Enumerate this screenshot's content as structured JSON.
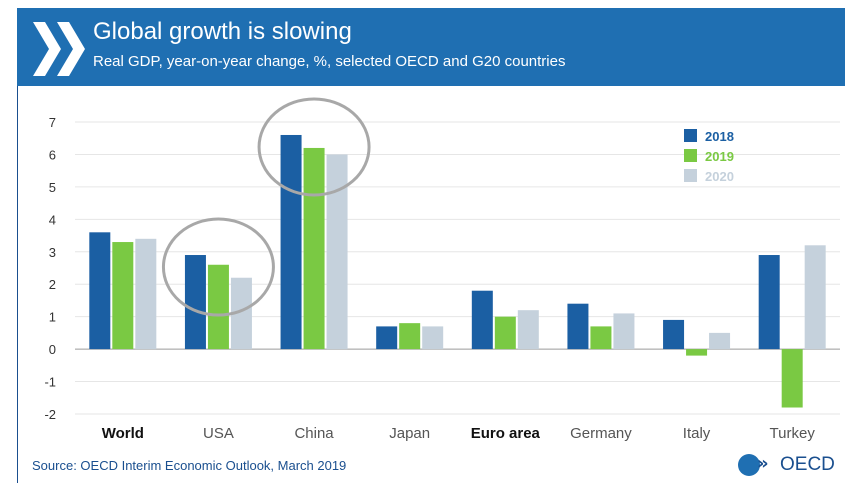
{
  "header": {
    "title": "Global growth is slowing",
    "subtitle": "Real GDP, year-on-year change, %, selected OECD and G20 countries",
    "bar_color": "#1f6fb2"
  },
  "footer": {
    "source": "Source: OECD Interim Economic Outlook, March 2019",
    "logo_text": "OECD"
  },
  "chart_data": {
    "type": "bar",
    "title": "Global growth is slowing",
    "subtitle": "Real GDP, year-on-year change, %, selected OECD and G20 countries",
    "categories": [
      "World",
      "USA",
      "China",
      "Japan",
      "Euro area",
      "Germany",
      "Italy",
      "Turkey"
    ],
    "bold_categories": [
      "World",
      "Euro area"
    ],
    "series": [
      {
        "name": "2018",
        "color": "#1b5fa3",
        "values": [
          3.6,
          2.9,
          6.6,
          0.7,
          1.8,
          1.4,
          0.9,
          2.9
        ]
      },
      {
        "name": "2019",
        "color": "#7ac943",
        "values": [
          3.3,
          2.6,
          6.2,
          0.8,
          1.0,
          0.7,
          -0.2,
          -1.8
        ]
      },
      {
        "name": "2020",
        "color": "#c5d1dc",
        "values": [
          3.4,
          2.2,
          6.0,
          0.7,
          1.2,
          1.1,
          0.5,
          3.2
        ]
      }
    ],
    "yticks": [
      "-2",
      "-1",
      "0",
      "1",
      "2",
      "3",
      "4",
      "5",
      "6",
      "7"
    ],
    "ylim": [
      -2,
      7
    ],
    "grid": true,
    "legend": "top-right",
    "highlighted_categories": [
      "USA",
      "China"
    ]
  }
}
